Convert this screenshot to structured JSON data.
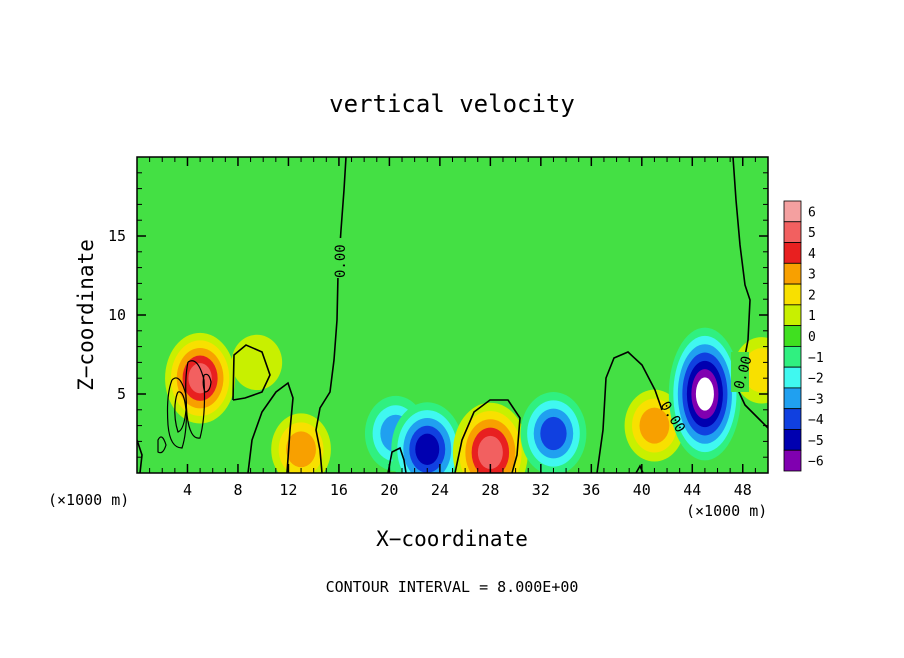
{
  "chart_data": {
    "type": "heatmap",
    "title": "vertical velocity",
    "xlabel": "X−coordinate",
    "ylabel": "Z−coordinate",
    "x_unit_left": "(×1000 m)",
    "x_unit_right": "(×1000 m)",
    "footer": "CONTOUR INTERVAL = 8.000E+00",
    "xlim": [
      0,
      50
    ],
    "ylim": [
      0,
      20
    ],
    "x_ticks": [
      4,
      8,
      12,
      16,
      20,
      24,
      28,
      32,
      36,
      40,
      44,
      48
    ],
    "x_tick_labels": [
      "4",
      "8",
      "12",
      "16",
      "20",
      "24",
      "28",
      "32",
      "36",
      "40",
      "44",
      "48"
    ],
    "y_ticks": [
      5,
      10,
      15
    ],
    "y_tick_labels": [
      "5",
      "10",
      "15"
    ],
    "colorbar": {
      "levels": [
        6,
        5,
        4,
        3,
        2,
        1,
        0,
        -1,
        -2,
        -3,
        -4,
        -5,
        -6
      ],
      "labels": [
        "6",
        "5",
        "4",
        "3",
        "2",
        "1",
        "0",
        "−1",
        "−2",
        "−3",
        "−4",
        "−5",
        "−6"
      ],
      "colors": [
        "#f4a0a0",
        "#f26060",
        "#e82020",
        "#f8a000",
        "#f8e000",
        "#c8f000",
        "#40e020",
        "#30f080",
        "#40f8f0",
        "#20a0f0",
        "#1040e0",
        "#0000b0",
        "#8000b0"
      ]
    },
    "background_color": "#44e044",
    "contour_labels": [
      "0.00",
      "0.00",
      "0.00"
    ],
    "features": [
      {
        "x": 5.0,
        "z": 6.0,
        "w": 4.2,
        "kind": "updraft"
      },
      {
        "x": 9.5,
        "z": 7.0,
        "w": 1.0,
        "kind": "updraft"
      },
      {
        "x": 13.0,
        "z": 1.5,
        "w": 2.5,
        "kind": "updraft"
      },
      {
        "x": 20.5,
        "z": 2.5,
        "w": -2.8,
        "kind": "downdraft"
      },
      {
        "x": 23.0,
        "z": 1.5,
        "w": -4.5,
        "kind": "downdraft"
      },
      {
        "x": 28.0,
        "z": 1.3,
        "w": 5.0,
        "kind": "updraft"
      },
      {
        "x": 33.0,
        "z": 2.5,
        "w": -3.5,
        "kind": "downdraft"
      },
      {
        "x": 41.0,
        "z": 3.0,
        "w": 2.5,
        "kind": "updraft"
      },
      {
        "x": 45.0,
        "z": 5.0,
        "w": -6.5,
        "kind": "downdraft"
      },
      {
        "x": 49.5,
        "z": 6.5,
        "w": 2.0,
        "kind": "updraft"
      }
    ]
  }
}
